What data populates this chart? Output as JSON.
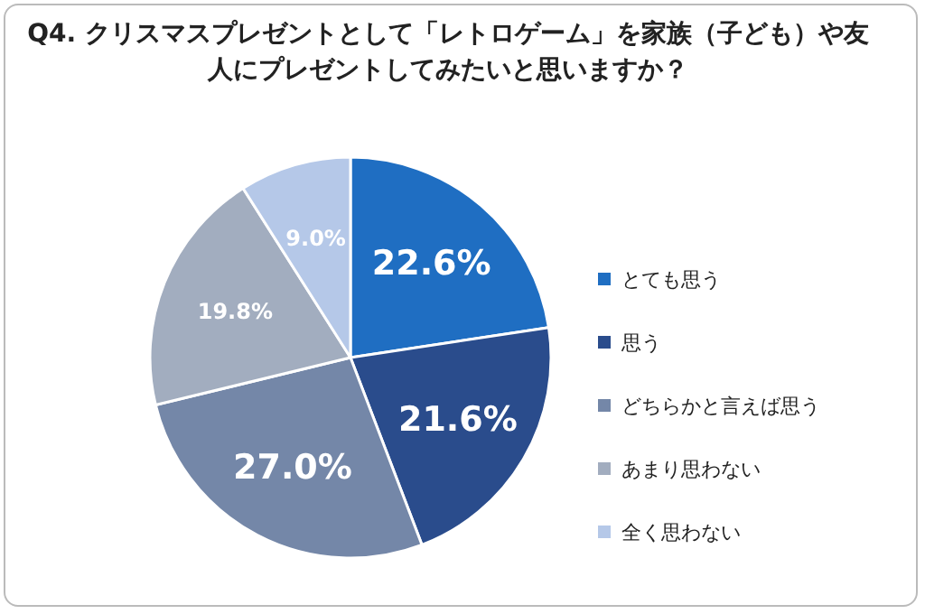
{
  "chart_data": {
    "type": "pie",
    "title": "Q4. クリスマスプレゼントとして「レトロゲーム」を家族（子ども）や友人にプレゼントしてみたいと思いますか？",
    "categories": [
      "とても思う",
      "思う",
      "どちらかと言えば思う",
      "あまり思わない",
      "全く思わない"
    ],
    "values": [
      22.6,
      21.6,
      27.0,
      19.8,
      9.0
    ],
    "colors": [
      "#1f6ec2",
      "#2a4c8c",
      "#7487a8",
      "#a2adbf",
      "#b5c8e8"
    ],
    "value_labels": [
      "22.6%",
      "21.6%",
      "27.0%",
      "19.8%",
      "9.0%"
    ],
    "legend": "right"
  }
}
